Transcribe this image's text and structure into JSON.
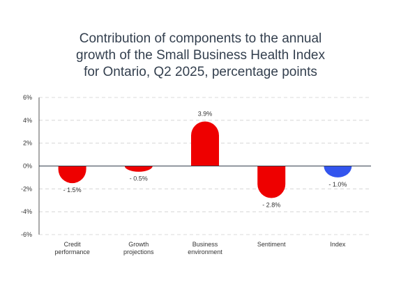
{
  "title_lines": [
    "Contribution of components to the annual",
    "growth of the Small Business Health Index",
    "for Ontario, Q2 2025, percentage points"
  ],
  "chart_data": {
    "type": "bar",
    "title": "Contribution of components to the annual growth of the Small Business Health Index for Ontario, Q2 2025, percentage points",
    "categories": [
      [
        "Credit",
        "performance"
      ],
      [
        "Growth",
        "projections"
      ],
      [
        "Business",
        "environment"
      ],
      [
        "Sentiment"
      ],
      [
        "Index"
      ]
    ],
    "values": [
      -1.5,
      -0.5,
      3.9,
      -2.8,
      -1.0
    ],
    "data_labels": [
      "- 1.5%",
      "- 0.5%",
      "3.9%",
      "- 2.8%",
      "- 1.0%"
    ],
    "colors": [
      "#ee0000",
      "#ee0000",
      "#ee0000",
      "#ee0000",
      "#3355ee"
    ],
    "ylim": [
      -6,
      6
    ],
    "yticks": [
      6,
      4,
      2,
      0,
      -2,
      -4,
      -6
    ],
    "ytick_labels": [
      "6%",
      "4%",
      "2%",
      "0%",
      "-2%",
      "-4%",
      "-6%"
    ],
    "grid": true,
    "bar_style": "rounded",
    "xlabel": "",
    "ylabel": ""
  }
}
